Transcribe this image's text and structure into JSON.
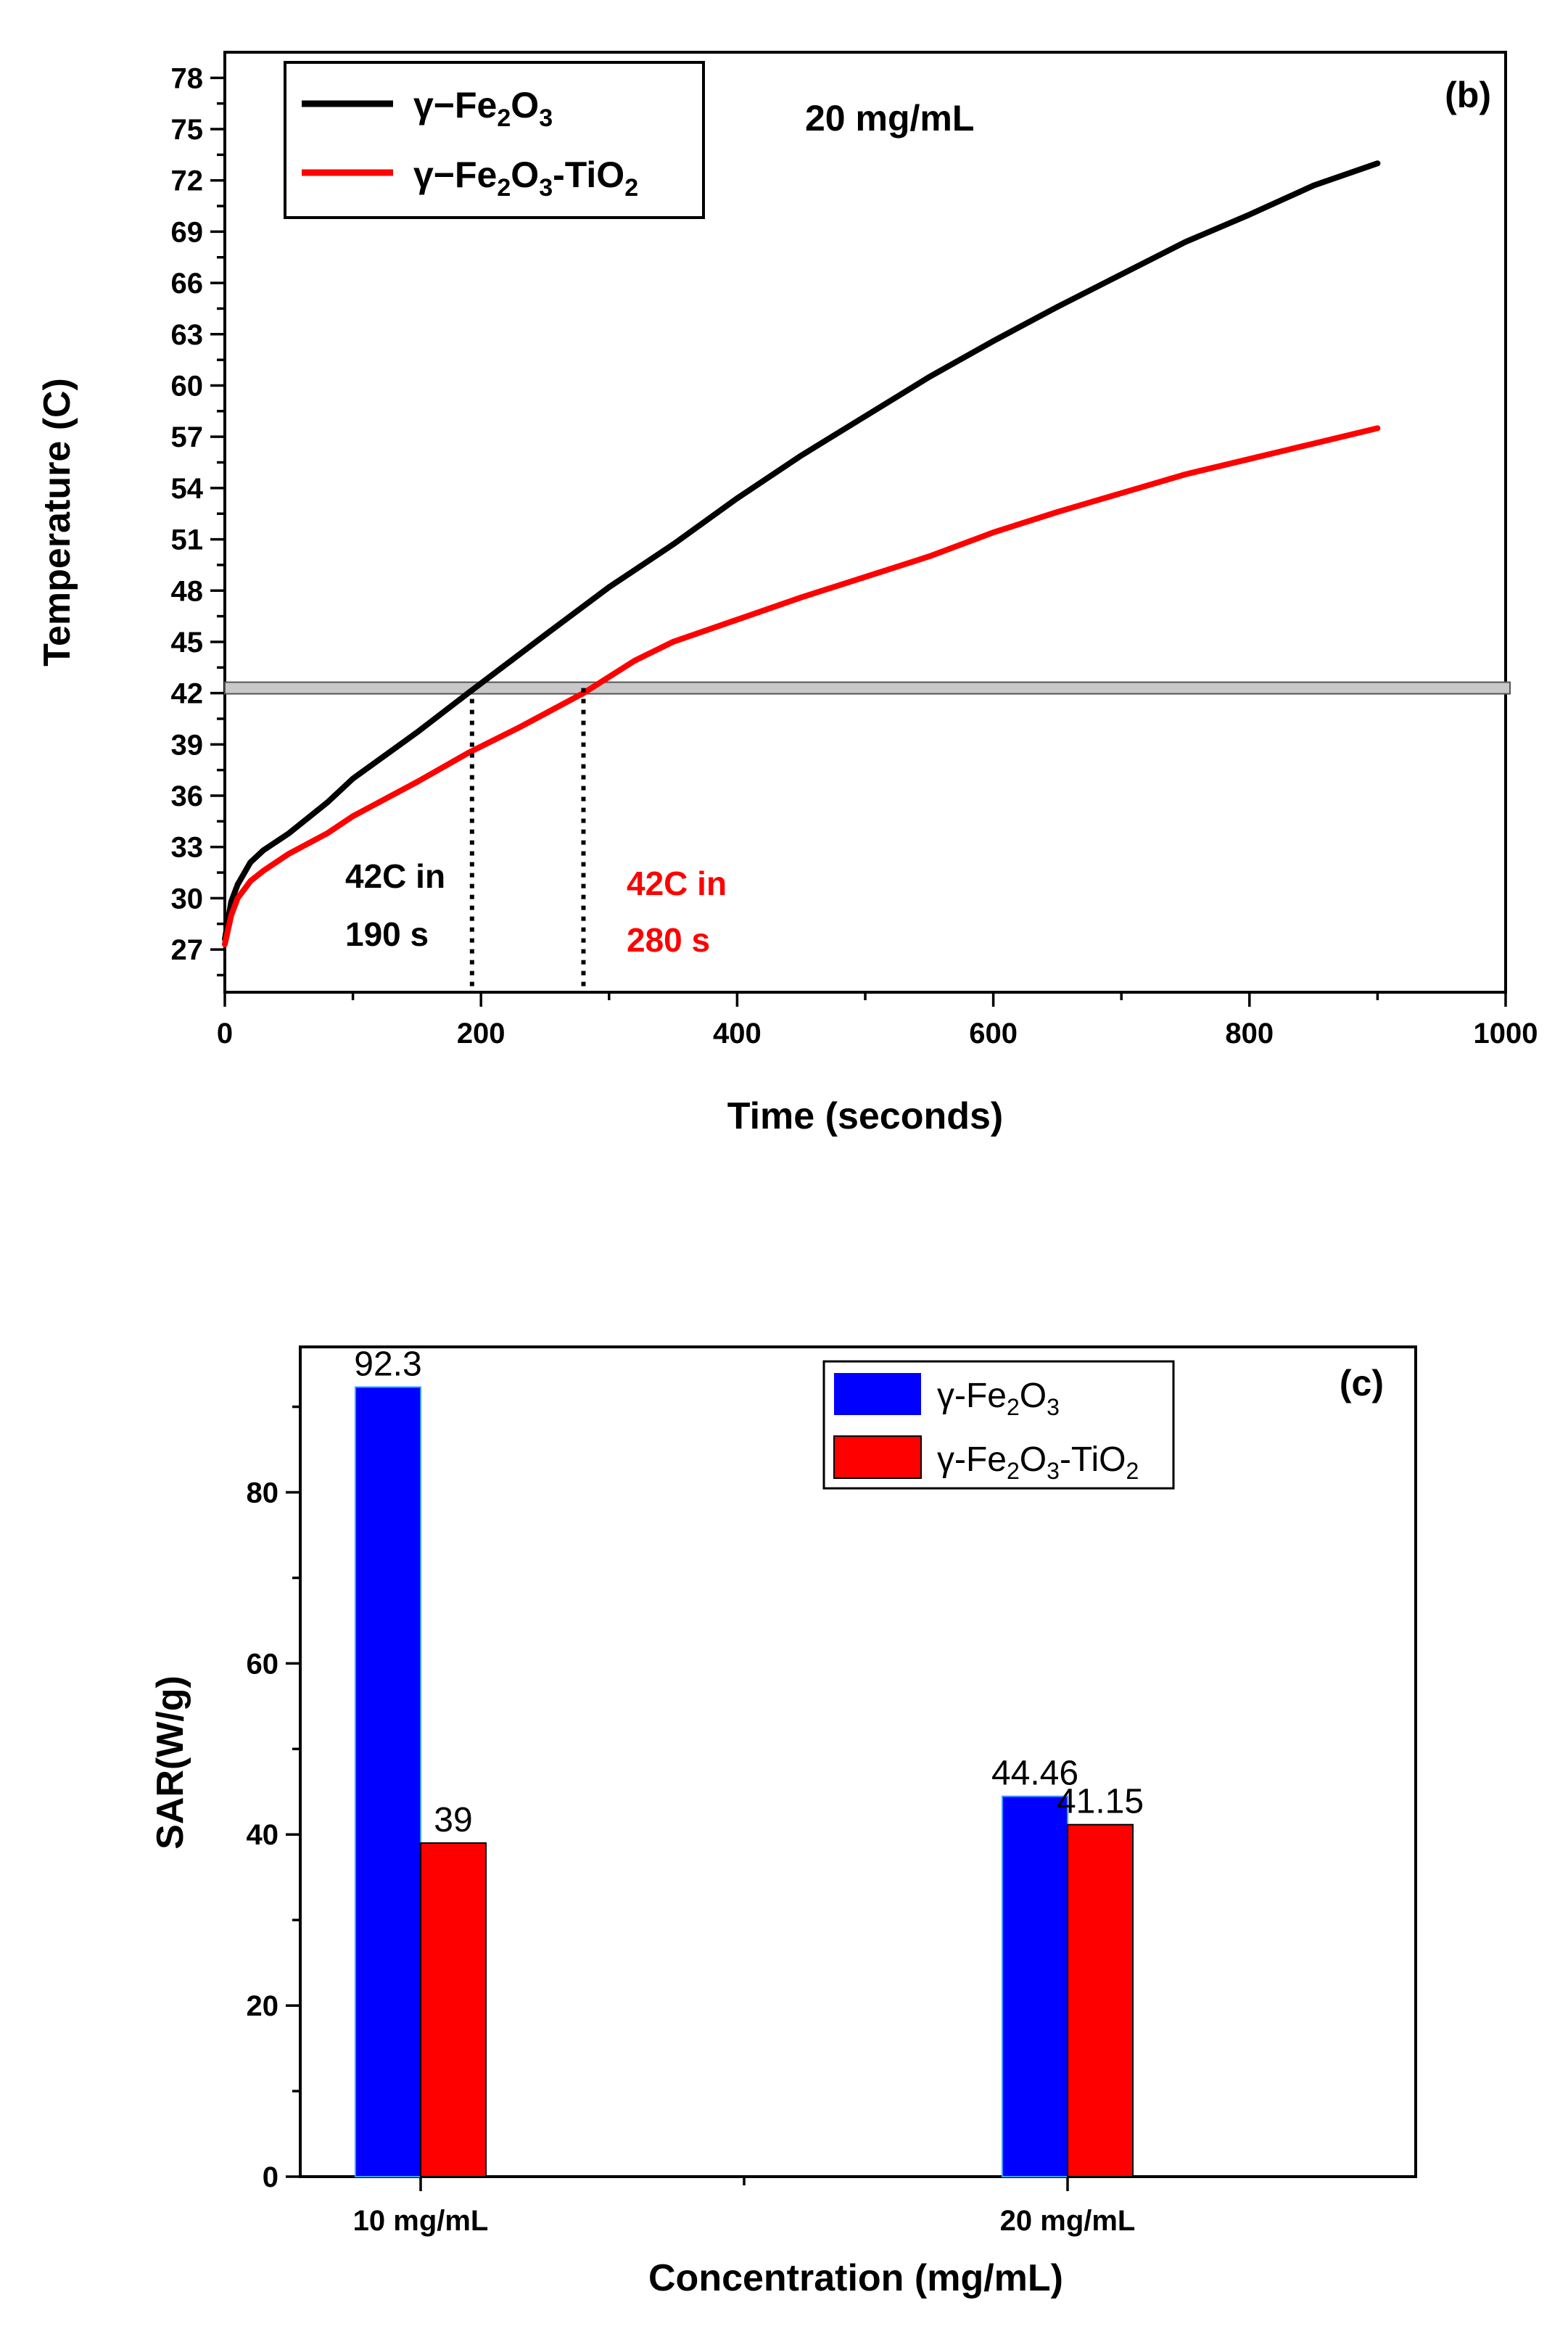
{
  "chart_data": [
    {
      "type": "line",
      "panel_label": "(b)",
      "title": "",
      "note": "20 mg/mL",
      "xlabel": "Time (seconds)",
      "ylabel": "Temperature (C)",
      "xlim": [
        0,
        1000
      ],
      "ylim": [
        24.5,
        79.5
      ],
      "xticks": [
        0,
        200,
        400,
        600,
        800,
        1000
      ],
      "yticks": [
        27,
        30,
        33,
        36,
        39,
        42,
        45,
        48,
        51,
        54,
        57,
        60,
        63,
        66,
        69,
        72,
        75,
        78
      ],
      "legend_position": "top-left",
      "threshold": {
        "value": 42.3,
        "label": "42"
      },
      "series": [
        {
          "name": "γ−Fe2O3",
          "legend": {
            "prefix": "γ−Fe",
            "sub1": "2",
            "mid": "O",
            "sub2": "3",
            "suffix": ""
          },
          "color": "#000000",
          "x": [
            0,
            5,
            10,
            20,
            30,
            50,
            80,
            100,
            150,
            190,
            250,
            300,
            350,
            400,
            450,
            500,
            550,
            600,
            650,
            700,
            750,
            800,
            850,
            900
          ],
          "y": [
            27.6,
            29.8,
            30.8,
            32.1,
            32.8,
            33.8,
            35.6,
            37.0,
            39.7,
            42.0,
            45.4,
            48.2,
            50.7,
            53.4,
            55.9,
            58.2,
            60.5,
            62.6,
            64.6,
            66.5,
            68.4,
            70.0,
            71.7,
            73.0
          ]
        },
        {
          "name": "γ−Fe2O3-TiO2",
          "legend": {
            "prefix": "γ−Fe",
            "sub1": "2",
            "mid": "O",
            "sub2": "3",
            "suffix": "-TiO",
            "sub3": "2"
          },
          "color": "#ff0000",
          "x": [
            0,
            5,
            10,
            20,
            30,
            50,
            80,
            100,
            150,
            190,
            230,
            280,
            320,
            350,
            400,
            450,
            500,
            550,
            600,
            650,
            700,
            750,
            800,
            850,
            900
          ],
          "y": [
            27.3,
            29.0,
            30.0,
            31.0,
            31.6,
            32.6,
            33.8,
            34.8,
            36.8,
            38.5,
            40.0,
            42.0,
            43.9,
            45.0,
            46.3,
            47.6,
            48.8,
            50.0,
            51.4,
            52.6,
            53.7,
            54.8,
            55.7,
            56.6,
            57.5
          ]
        }
      ],
      "annotations": [
        {
          "line1": "42C in",
          "line2": "190 s",
          "x_marker": 193,
          "color": "#000000"
        },
        {
          "line1": "42C in",
          "line2": "280 s",
          "x_marker": 280,
          "color": "#ff0000"
        }
      ]
    },
    {
      "type": "bar",
      "panel_label": "(c)",
      "title": "",
      "xlabel": "Concentration (mg/mL)",
      "ylabel": "SAR(W/g)",
      "categories": [
        "10 mg/mL",
        "20 mg/mL"
      ],
      "ylim": [
        0,
        97
      ],
      "yticks": [
        0,
        20,
        40,
        60,
        80
      ],
      "legend_position": "top-right",
      "series": [
        {
          "name": "γ-Fe2O3",
          "legend": {
            "prefix": "γ-Fe",
            "sub1": "2",
            "mid": "O",
            "sub2": "3",
            "suffix": ""
          },
          "color": "#0000ff",
          "values": [
            92.3,
            44.46
          ],
          "labels": [
            "92.3",
            "44.46"
          ]
        },
        {
          "name": "γ-Fe2O3-TiO2",
          "legend": {
            "prefix": "γ-Fe",
            "sub1": "2",
            "mid": "O",
            "sub2": "3",
            "suffix": "-TiO",
            "sub3": "2"
          },
          "color": "#ff0000",
          "values": [
            39,
            41.15
          ],
          "labels": [
            "39",
            "41.15"
          ]
        }
      ]
    }
  ]
}
